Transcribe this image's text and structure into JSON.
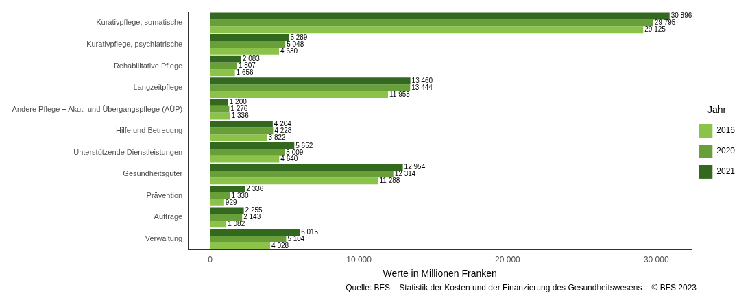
{
  "chart_data": {
    "type": "bar",
    "orientation": "horizontal",
    "xlabel": "Werte in Millionen Franken",
    "legend_title": "Jahr",
    "legend": "right",
    "grid": false,
    "categories": [
      "Kurativpflege, somatische",
      "Kurativpflege, psychiatrische",
      "Rehabilitative Pflege",
      "Langzeitpflege",
      "Andere Pflege + Akut- und Übergangspflege (AÜP)",
      "Hilfe und Betreuung",
      "Unterstützende Dienstleistungen",
      "Gesundheitsgüter",
      "Prävention",
      "Aufträge",
      "Verwaltung"
    ],
    "series": [
      {
        "name": "2016",
        "color": "#8bc34a",
        "values": [
          29125,
          4630,
          1656,
          11958,
          1336,
          3822,
          4640,
          11288,
          929,
          1082,
          4028
        ],
        "value_labels": [
          "29 125",
          "4 630",
          "1 656",
          "11 958",
          "1 336",
          "3 822",
          "4 640",
          "11 288",
          "929",
          "1 082",
          "4 028"
        ]
      },
      {
        "name": "2020",
        "color": "#689f38",
        "values": [
          29795,
          5048,
          1807,
          13444,
          1276,
          4228,
          5009,
          12314,
          1330,
          2143,
          5104
        ],
        "value_labels": [
          "29 795",
          "5 048",
          "1 807",
          "13 444",
          "1 276",
          "4 228",
          "5 009",
          "12 314",
          "1 330",
          "2 143",
          "5 104"
        ]
      },
      {
        "name": "2021",
        "color": "#33691e",
        "values": [
          30896,
          5289,
          2083,
          13460,
          1200,
          4204,
          5652,
          12954,
          2336,
          2255,
          6015
        ],
        "value_labels": [
          "30 896",
          "5 289",
          "2 083",
          "13 460",
          "1 200",
          "4 204",
          "5 652",
          "12 954",
          "2 336",
          "2 255",
          "6 015"
        ]
      }
    ],
    "xlim": [
      -1500,
      32400
    ],
    "xticks": [
      0,
      {
        "value": 10000,
        "label": "10 000"
      },
      {
        "value": 20000,
        "label": "20 000"
      },
      {
        "value": 30000,
        "label": "30 000"
      }
    ],
    "annotations": [
      "Quelle: BFS – Statistik der Kosten und der Finanzierung des Gesundheitswesens",
      "© BFS 2023"
    ]
  }
}
